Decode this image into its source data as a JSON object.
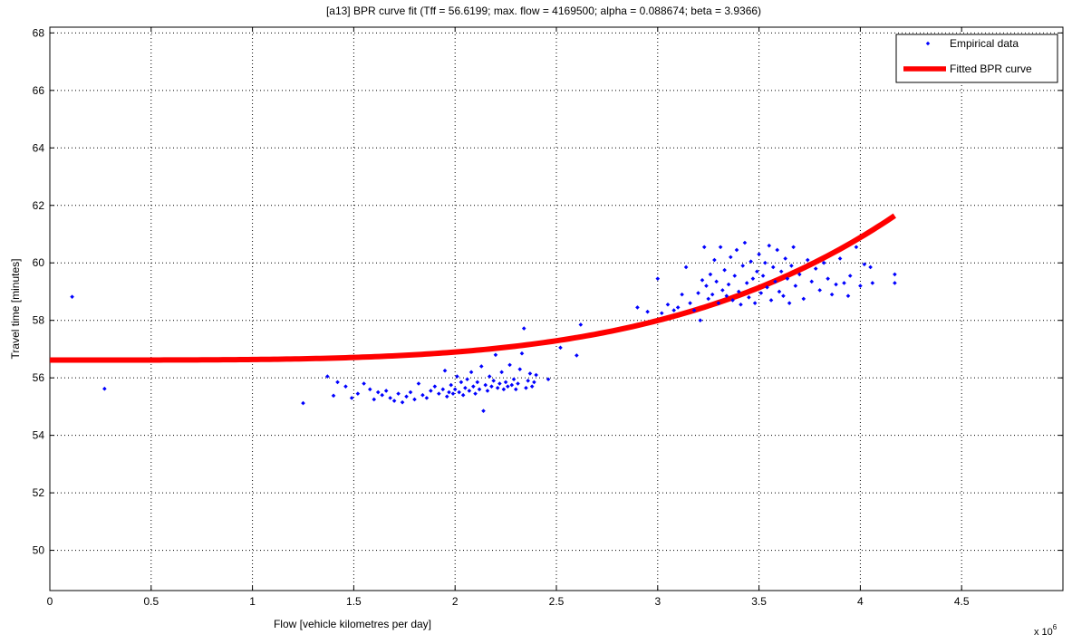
{
  "chart_data": {
    "type": "scatter",
    "title": "[a13] BPR curve fit (Tff = 56.6199; max. flow = 4169500; alpha = 0.088674; beta = 3.9366)",
    "xlabel": "Flow [vehicle kilometres per day]",
    "ylabel": "Travel time [minutes]",
    "x_multiplier_label": "x 10",
    "x_multiplier_exponent": "6",
    "xlim": [
      0,
      5
    ],
    "ylim": [
      48.6,
      68.2
    ],
    "xticks": [
      0,
      0.5,
      1,
      1.5,
      2,
      2.5,
      3,
      3.5,
      4,
      4.5
    ],
    "xtick_labels": [
      "0",
      "0.5",
      "1",
      "1.5",
      "2",
      "2.5",
      "3",
      "3.5",
      "4",
      "4.5"
    ],
    "yticks": [
      50,
      52,
      54,
      56,
      58,
      60,
      62,
      64,
      66,
      68
    ],
    "ytick_labels": [
      "50",
      "52",
      "54",
      "56",
      "58",
      "60",
      "62",
      "64",
      "66",
      "68"
    ],
    "grid": true,
    "legend_position": "top-right",
    "series": [
      {
        "name": "Empirical data",
        "kind": "scatter",
        "color": "#0000ff",
        "points": [
          [
            0.11,
            58.82
          ],
          [
            0.27,
            55.62
          ],
          [
            1.25,
            55.12
          ],
          [
            1.37,
            56.05
          ],
          [
            1.4,
            55.38
          ],
          [
            1.42,
            55.85
          ],
          [
            1.46,
            55.7
          ],
          [
            1.49,
            55.3
          ],
          [
            1.52,
            55.45
          ],
          [
            1.55,
            55.8
          ],
          [
            1.58,
            55.6
          ],
          [
            1.6,
            55.25
          ],
          [
            1.62,
            55.5
          ],
          [
            1.64,
            55.4
          ],
          [
            1.66,
            55.55
          ],
          [
            1.68,
            55.3
          ],
          [
            1.7,
            55.2
          ],
          [
            1.72,
            55.45
          ],
          [
            1.74,
            55.15
          ],
          [
            1.76,
            55.35
          ],
          [
            1.78,
            55.5
          ],
          [
            1.8,
            55.25
          ],
          [
            1.82,
            55.8
          ],
          [
            1.84,
            55.4
          ],
          [
            1.86,
            55.3
          ],
          [
            1.88,
            55.55
          ],
          [
            1.9,
            55.7
          ],
          [
            1.92,
            55.45
          ],
          [
            1.94,
            55.6
          ],
          [
            1.95,
            56.25
          ],
          [
            1.96,
            55.35
          ],
          [
            1.97,
            55.5
          ],
          [
            1.98,
            55.75
          ],
          [
            1.99,
            55.45
          ],
          [
            2.0,
            55.6
          ],
          [
            2.01,
            56.05
          ],
          [
            2.02,
            55.5
          ],
          [
            2.03,
            55.85
          ],
          [
            2.04,
            55.4
          ],
          [
            2.05,
            55.65
          ],
          [
            2.06,
            55.95
          ],
          [
            2.07,
            55.55
          ],
          [
            2.08,
            56.2
          ],
          [
            2.09,
            55.7
          ],
          [
            2.1,
            55.45
          ],
          [
            2.11,
            55.85
          ],
          [
            2.12,
            55.6
          ],
          [
            2.13,
            56.4
          ],
          [
            2.14,
            54.85
          ],
          [
            2.15,
            55.75
          ],
          [
            2.16,
            55.55
          ],
          [
            2.17,
            56.05
          ],
          [
            2.18,
            55.7
          ],
          [
            2.19,
            55.9
          ],
          [
            2.2,
            56.8
          ],
          [
            2.21,
            55.65
          ],
          [
            2.22,
            55.8
          ],
          [
            2.23,
            56.2
          ],
          [
            2.24,
            55.6
          ],
          [
            2.25,
            55.85
          ],
          [
            2.26,
            55.7
          ],
          [
            2.27,
            56.45
          ],
          [
            2.28,
            55.75
          ],
          [
            2.29,
            55.95
          ],
          [
            2.3,
            55.6
          ],
          [
            2.31,
            55.8
          ],
          [
            2.32,
            56.3
          ],
          [
            2.33,
            56.85
          ],
          [
            2.34,
            57.72
          ],
          [
            2.35,
            55.65
          ],
          [
            2.36,
            55.9
          ],
          [
            2.37,
            56.15
          ],
          [
            2.38,
            55.7
          ],
          [
            2.39,
            55.85
          ],
          [
            2.4,
            56.1
          ],
          [
            2.46,
            55.95
          ],
          [
            2.52,
            57.05
          ],
          [
            2.6,
            56.78
          ],
          [
            2.62,
            57.85
          ],
          [
            2.9,
            58.45
          ],
          [
            2.95,
            58.3
          ],
          [
            3.0,
            59.45
          ],
          [
            3.02,
            58.25
          ],
          [
            3.05,
            58.55
          ],
          [
            3.08,
            58.35
          ],
          [
            3.1,
            58.45
          ],
          [
            3.12,
            58.9
          ],
          [
            3.14,
            59.85
          ],
          [
            3.16,
            58.6
          ],
          [
            3.18,
            58.35
          ],
          [
            3.2,
            58.95
          ],
          [
            3.21,
            58.0
          ],
          [
            3.22,
            59.4
          ],
          [
            3.23,
            60.55
          ],
          [
            3.24,
            59.2
          ],
          [
            3.25,
            58.75
          ],
          [
            3.26,
            59.6
          ],
          [
            3.27,
            58.9
          ],
          [
            3.28,
            60.1
          ],
          [
            3.29,
            59.35
          ],
          [
            3.3,
            58.6
          ],
          [
            3.31,
            60.55
          ],
          [
            3.32,
            59.05
          ],
          [
            3.33,
            59.75
          ],
          [
            3.34,
            58.85
          ],
          [
            3.35,
            59.25
          ],
          [
            3.36,
            60.2
          ],
          [
            3.37,
            58.7
          ],
          [
            3.38,
            59.55
          ],
          [
            3.39,
            60.45
          ],
          [
            3.4,
            59.0
          ],
          [
            3.41,
            58.55
          ],
          [
            3.42,
            59.9
          ],
          [
            3.43,
            60.7
          ],
          [
            3.44,
            59.3
          ],
          [
            3.45,
            58.8
          ],
          [
            3.46,
            60.05
          ],
          [
            3.47,
            59.45
          ],
          [
            3.48,
            58.6
          ],
          [
            3.49,
            59.7
          ],
          [
            3.5,
            60.3
          ],
          [
            3.51,
            58.95
          ],
          [
            3.52,
            59.55
          ],
          [
            3.53,
            60.0
          ],
          [
            3.54,
            59.15
          ],
          [
            3.55,
            60.6
          ],
          [
            3.56,
            58.7
          ],
          [
            3.57,
            59.85
          ],
          [
            3.58,
            59.35
          ],
          [
            3.59,
            60.45
          ],
          [
            3.6,
            59.0
          ],
          [
            3.61,
            59.7
          ],
          [
            3.62,
            58.85
          ],
          [
            3.63,
            60.15
          ],
          [
            3.64,
            59.45
          ],
          [
            3.65,
            58.6
          ],
          [
            3.66,
            59.9
          ],
          [
            3.67,
            60.55
          ],
          [
            3.68,
            59.2
          ],
          [
            3.7,
            59.6
          ],
          [
            3.72,
            58.75
          ],
          [
            3.74,
            60.1
          ],
          [
            3.76,
            59.35
          ],
          [
            3.78,
            59.8
          ],
          [
            3.8,
            59.05
          ],
          [
            3.82,
            60.0
          ],
          [
            3.84,
            59.45
          ],
          [
            3.86,
            58.9
          ],
          [
            3.88,
            59.25
          ],
          [
            3.9,
            60.15
          ],
          [
            3.92,
            59.3
          ],
          [
            3.94,
            58.85
          ],
          [
            3.95,
            59.55
          ],
          [
            3.98,
            60.55
          ],
          [
            4.0,
            59.2
          ],
          [
            4.02,
            59.95
          ],
          [
            4.05,
            59.85
          ],
          [
            4.06,
            59.3
          ],
          [
            4.17,
            59.6
          ],
          [
            4.17,
            59.3
          ]
        ]
      },
      {
        "name": "Fitted BPR curve",
        "kind": "line",
        "color": "#ff0000",
        "function": "bpr",
        "tff": 56.6199,
        "max_flow_millions": 4.1695,
        "alpha": 0.088674,
        "beta": 3.9366,
        "x_range": [
          0,
          4.1695
        ]
      }
    ]
  }
}
